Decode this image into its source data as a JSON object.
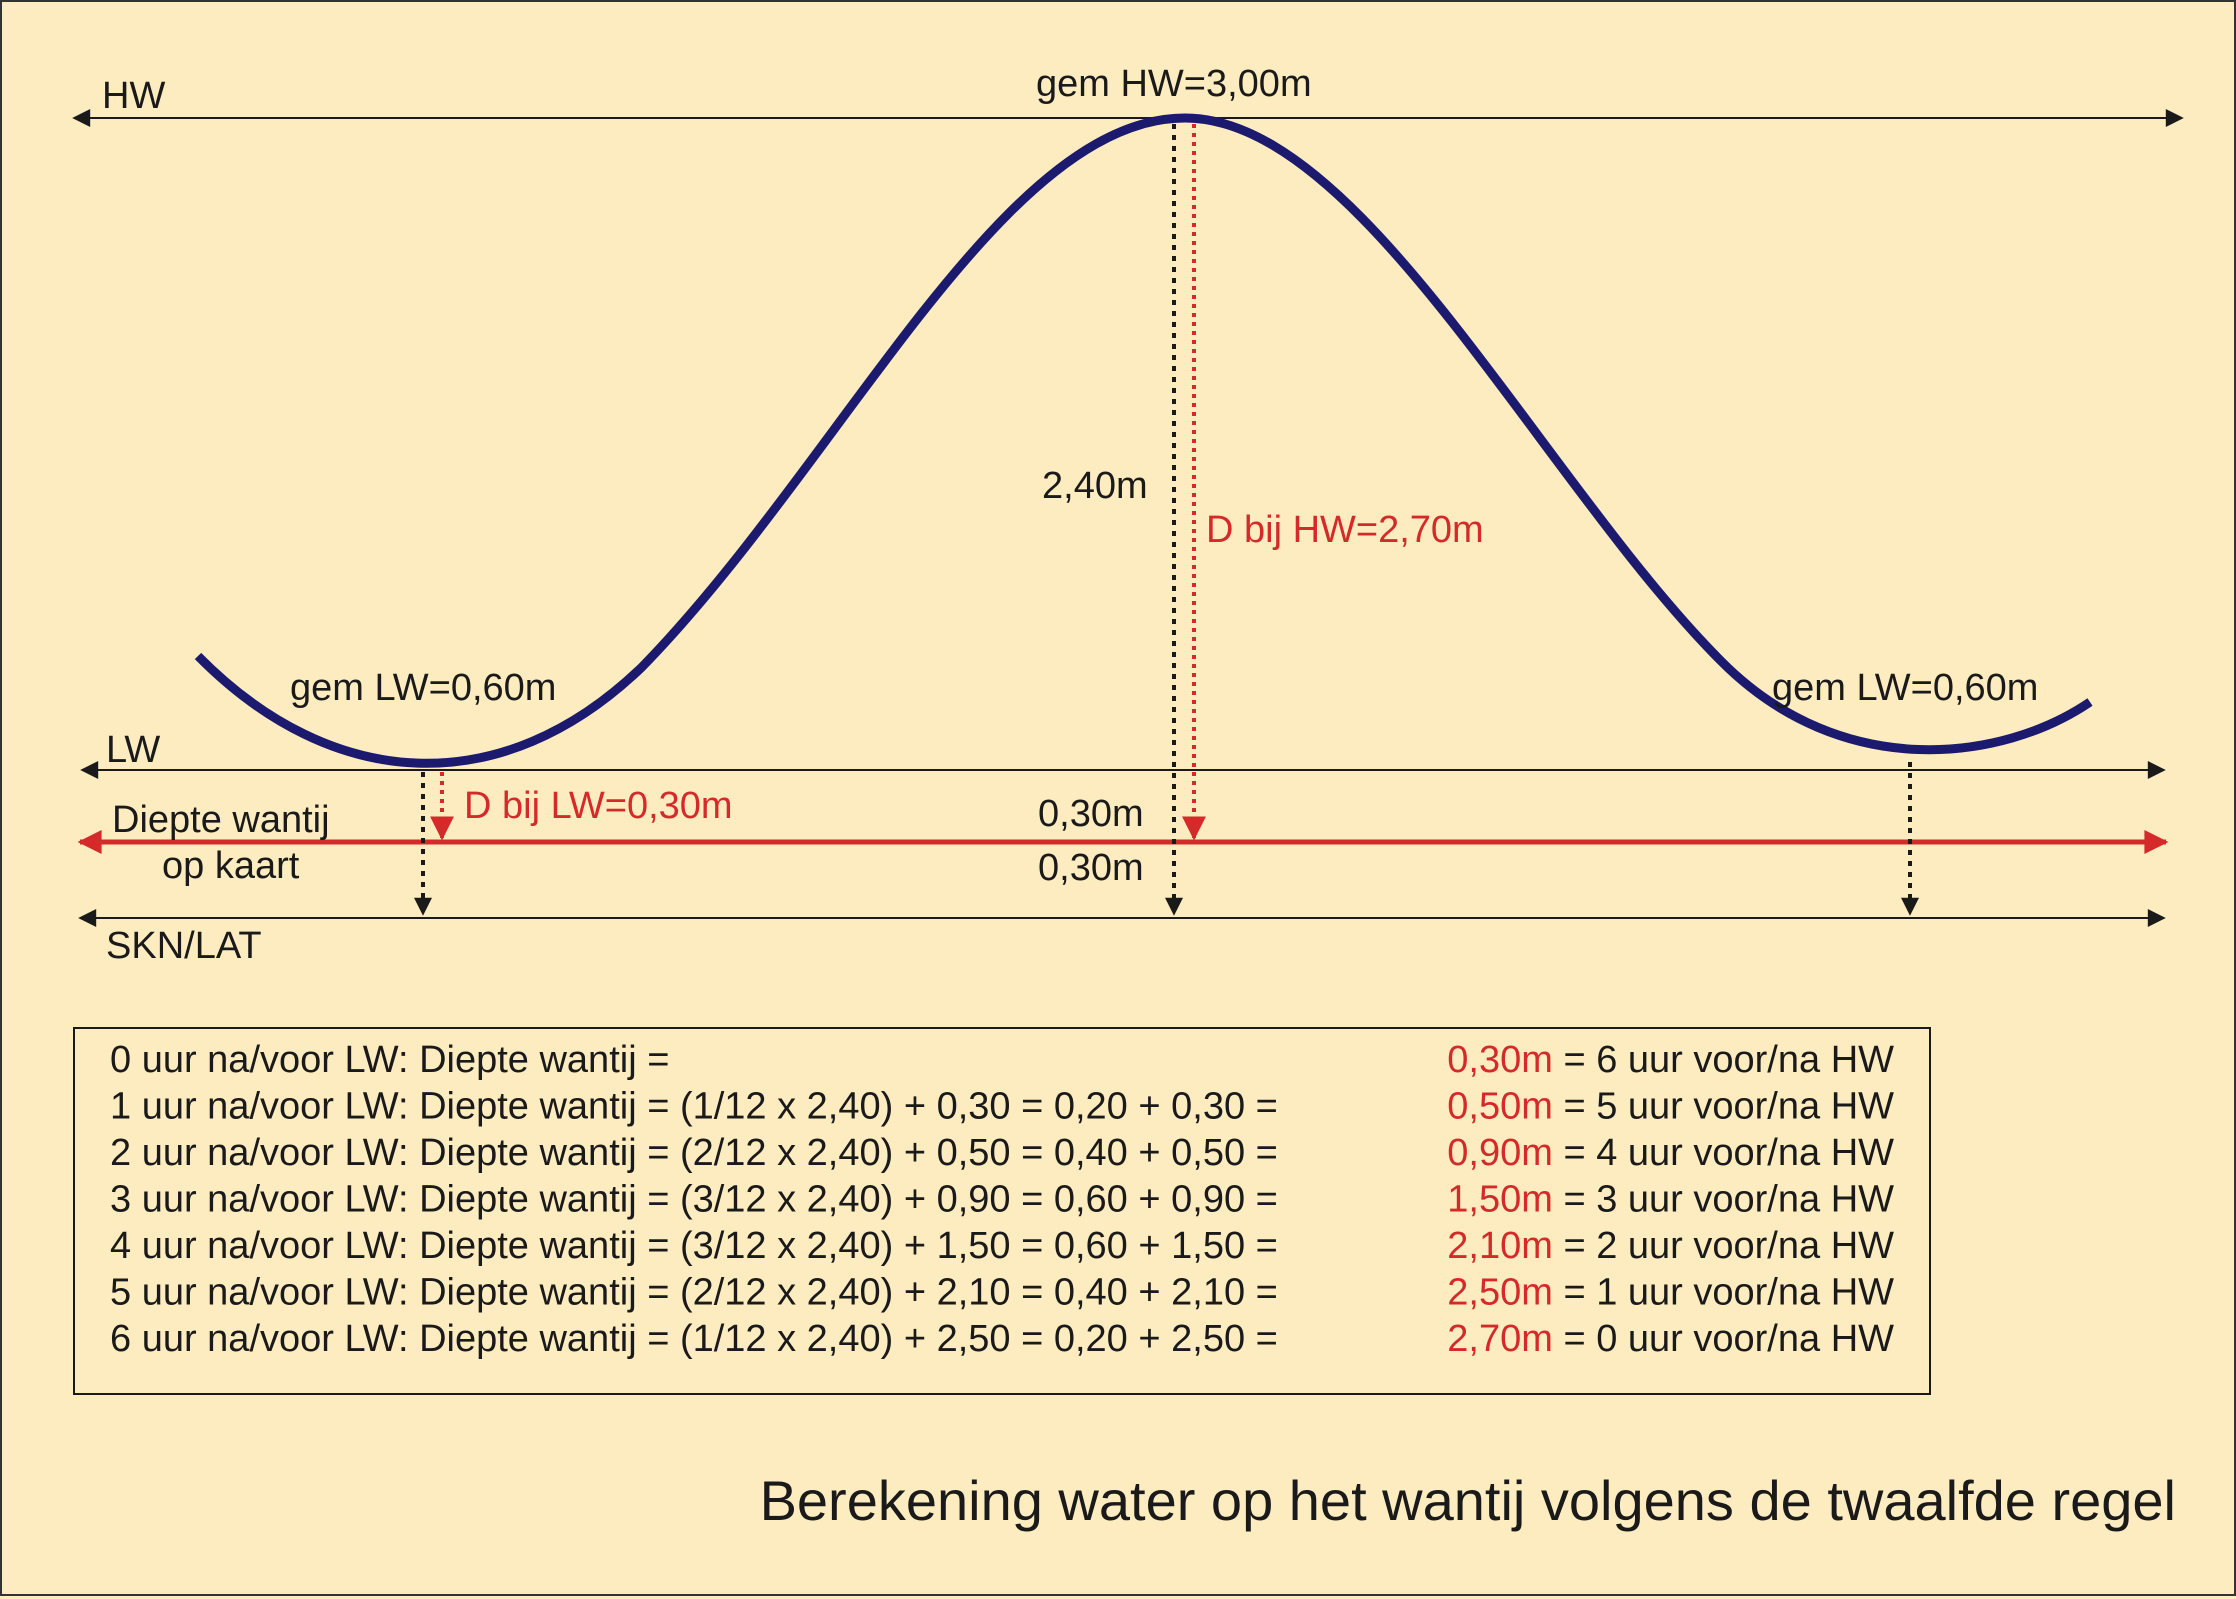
{
  "labels": {
    "hw": "HW",
    "gem_hw": "gem HW=3,00m",
    "lw": "LW",
    "gem_lw_left": "gem LW=0,60m",
    "gem_lw_right": "gem LW=0,60m",
    "range": "2,40m",
    "d_bij_hw": "D bij HW=2,70m",
    "d_bij_lw": "D bij LW=0,30m",
    "diepte_line1": "Diepte wantij",
    "diepte_line2": "op kaart",
    "depth_upper": "0,30m",
    "depth_lower": "0,30m",
    "skn": "SKN/LAT"
  },
  "table": {
    "rows": [
      {
        "left": "0 uur na/voor LW: Diepte wantij =",
        "value": "0,30m",
        "right": " = 6 uur voor/na HW"
      },
      {
        "left": "1 uur na/voor LW: Diepte wantij = (1/12 x 2,40) + 0,30 = 0,20 + 0,30 = ",
        "value": "0,50m",
        "right": " = 5 uur voor/na HW"
      },
      {
        "left": "2 uur na/voor LW: Diepte wantij = (2/12 x 2,40) + 0,50 = 0,40 + 0,50 = ",
        "value": "0,90m",
        "right": " = 4 uur voor/na HW"
      },
      {
        "left": "3 uur na/voor LW: Diepte wantij = (3/12 x 2,40) + 0,90 = 0,60 + 0,90 = ",
        "value": "1,50m",
        "right": " = 3 uur voor/na HW"
      },
      {
        "left": "4 uur na/voor LW: Diepte wantij = (3/12 x 2,40) + 1,50 = 0,60 + 1,50 = ",
        "value": "2,10m",
        "right": " = 2 uur voor/na HW"
      },
      {
        "left": "5 uur na/voor LW: Diepte wantij = (2/12 x 2,40) + 2,10 = 0,40 + 2,10 = ",
        "value": "2,50m",
        "right": " = 1 uur voor/na HW"
      },
      {
        "left": "6 uur na/voor LW: Diepte wantij = (1/12 x 2,40) + 2,50 = 0,20 + 2,50 = ",
        "value": "2,70m",
        "right": " = 0 uur voor/na HW"
      }
    ]
  },
  "title": "Berekening water op het wantij volgens de twaalfde regel",
  "colors": {
    "background": "#fdecc0",
    "curve": "#1c1a6e",
    "accent_red": "#d42a2a",
    "ink": "#1a1a1a"
  }
}
